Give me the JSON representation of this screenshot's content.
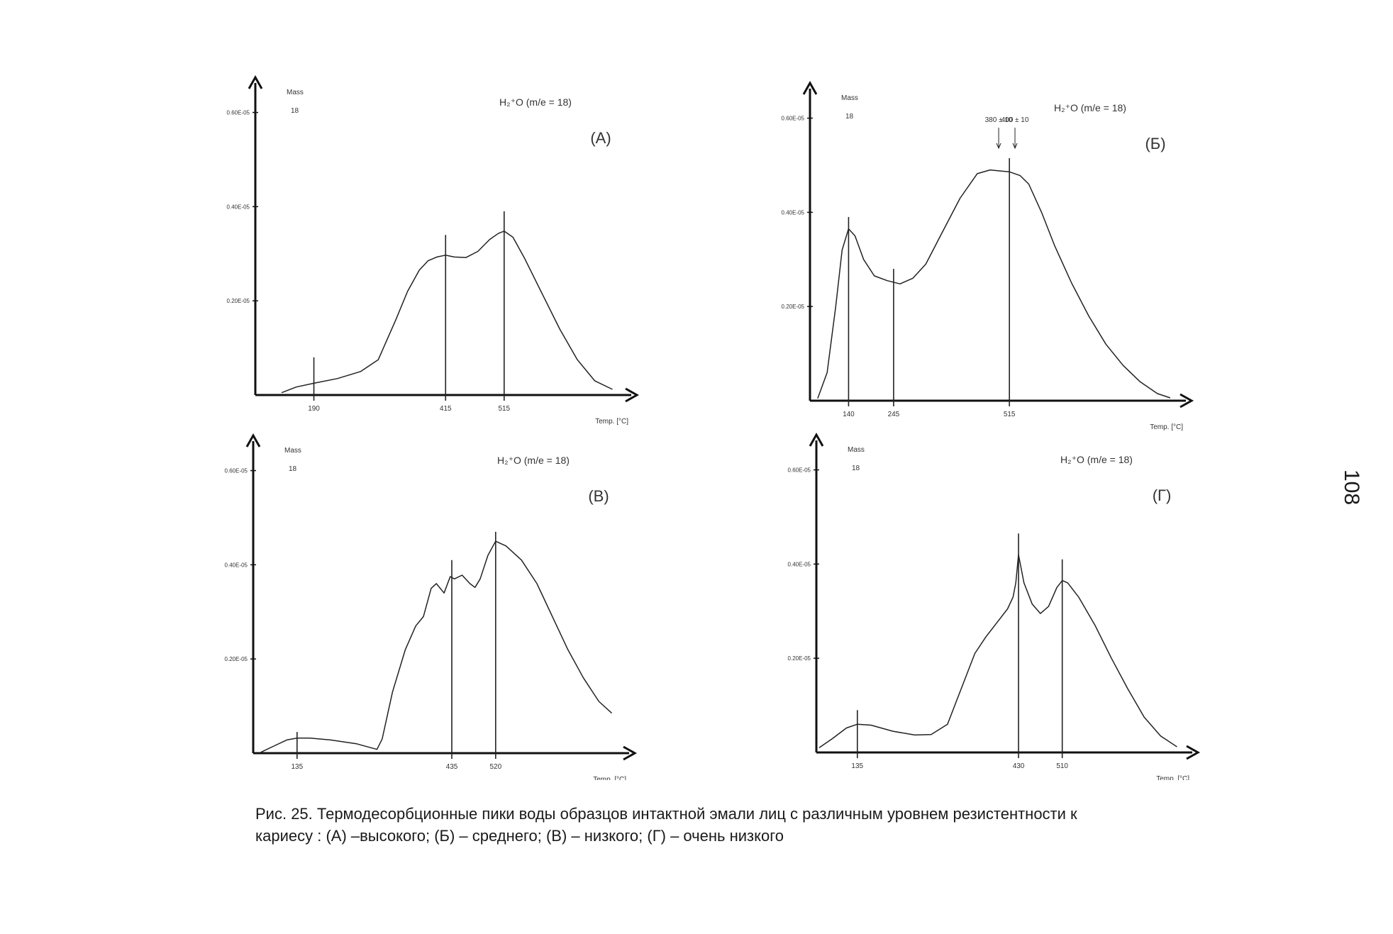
{
  "page_number": "108",
  "caption": {
    "line1": "Рис. 25. Термодесорбционные пики воды образцов интактной эмали лиц с различным уровнем резистентности к",
    "line2": "кариесу : (А) –высокого; (Б) – среднего; (В) – низкого; (Г) – очень низкого"
  },
  "chart_data": [
    {
      "type": "line",
      "panel_label": "(А)",
      "legend": "H₂⁺O (m/e = 18)",
      "mass_label": "Mass",
      "mass_value": "18",
      "xlabel": "Temp. [°C]",
      "ylabel": "",
      "ytick_labels": [
        "0.20E-05",
        "0.40E-05",
        "0.60E-05"
      ],
      "yticks": [
        0.2,
        0.4,
        0.6
      ],
      "xlim": [
        90,
        720
      ],
      "ylim": [
        0,
        0.64
      ],
      "peaks": [
        {
          "label": "190",
          "x": 190,
          "top": 0.08
        },
        {
          "label": "415",
          "x": 415,
          "top": 0.34
        },
        {
          "label": "515",
          "x": 515,
          "top": 0.39
        }
      ],
      "annotations": [],
      "series": [
        {
          "x": [
            135,
            160,
            190,
            230,
            270,
            300,
            330,
            350,
            370,
            385,
            400,
            415,
            430,
            450,
            470,
            490,
            505,
            515,
            530,
            550,
            580,
            610,
            640,
            670,
            700
          ],
          "y": [
            0.005,
            0.017,
            0.025,
            0.035,
            0.05,
            0.075,
            0.16,
            0.22,
            0.265,
            0.285,
            0.293,
            0.297,
            0.293,
            0.292,
            0.305,
            0.33,
            0.343,
            0.348,
            0.335,
            0.29,
            0.215,
            0.14,
            0.075,
            0.03,
            0.012
          ]
        }
      ]
    },
    {
      "type": "line",
      "panel_label": "(Б)",
      "legend": "H₂⁺O (m/e = 18)",
      "mass_label": "Mass",
      "mass_value": "18",
      "xlabel": "Temp. [°C]",
      "ylabel": "",
      "ytick_labels": [
        "0.20E-05",
        "0.40E-05",
        "0.60E-05"
      ],
      "yticks": [
        0.2,
        0.4,
        0.6
      ],
      "xlim": [
        50,
        910
      ],
      "ylim": [
        0,
        0.64
      ],
      "peaks": [
        {
          "label": "140",
          "x": 140,
          "top": 0.39
        },
        {
          "label": "245",
          "x": 245,
          "top": 0.28
        },
        {
          "label": "515",
          "x": 515,
          "top": 0.515
        }
      ],
      "annotations": [
        {
          "text": "380 ± 10",
          "x": 490
        },
        {
          "text": "400 ± 10",
          "x": 528
        }
      ],
      "series": [
        {
          "x": [
            68,
            90,
            110,
            125,
            140,
            155,
            175,
            200,
            230,
            260,
            290,
            320,
            360,
            400,
            440,
            470,
            490,
            515,
            540,
            560,
            590,
            620,
            660,
            700,
            740,
            780,
            820,
            860,
            890
          ],
          "y": [
            0.005,
            0.06,
            0.2,
            0.32,
            0.365,
            0.35,
            0.3,
            0.265,
            0.255,
            0.248,
            0.26,
            0.29,
            0.36,
            0.43,
            0.482,
            0.49,
            0.488,
            0.486,
            0.478,
            0.46,
            0.4,
            0.33,
            0.25,
            0.18,
            0.12,
            0.075,
            0.04,
            0.015,
            0.006
          ]
        }
      ]
    },
    {
      "type": "line",
      "panel_label": "(В)",
      "legend": "H₂⁺O (m/e = 18)",
      "mass_label": "Mass",
      "mass_value": "18",
      "xlabel": "Temp. [°C]",
      "ylabel": "",
      "ytick_labels": [
        "0.20E-05",
        "0.40E-05",
        "0.60E-05"
      ],
      "yticks": [
        0.2,
        0.4,
        0.6
      ],
      "xlim": [
        50,
        765
      ],
      "ylim": [
        0,
        0.64
      ],
      "peaks": [
        {
          "label": "135",
          "x": 135,
          "top": 0.045
        },
        {
          "label": "435",
          "x": 435,
          "top": 0.41
        },
        {
          "label": "520",
          "x": 520,
          "top": 0.47
        }
      ],
      "annotations": [],
      "series": [
        {
          "x": [
            65,
            90,
            115,
            135,
            160,
            200,
            250,
            290,
            300,
            320,
            345,
            365,
            380,
            395,
            405,
            420,
            432,
            440,
            455,
            470,
            480,
            490,
            505,
            520,
            540,
            570,
            600,
            630,
            660,
            690,
            720,
            745
          ],
          "y": [
            0.002,
            0.015,
            0.028,
            0.032,
            0.032,
            0.028,
            0.02,
            0.008,
            0.03,
            0.13,
            0.22,
            0.27,
            0.29,
            0.35,
            0.36,
            0.34,
            0.375,
            0.37,
            0.378,
            0.36,
            0.352,
            0.37,
            0.42,
            0.45,
            0.44,
            0.41,
            0.36,
            0.29,
            0.22,
            0.16,
            0.11,
            0.085
          ]
        }
      ]
    },
    {
      "type": "line",
      "panel_label": "(Г)",
      "legend": "H₂⁺O (m/e = 18)",
      "mass_label": "Mass",
      "mass_value": "18",
      "xlabel": "Temp. [°C]",
      "ylabel": "",
      "ytick_labels": [
        "0.20E-05",
        "0.40E-05",
        "0.60E-05"
      ],
      "yticks": [
        0.2,
        0.4,
        0.6
      ],
      "xlim": [
        60,
        735
      ],
      "ylim": [
        0,
        0.64
      ],
      "peaks": [
        {
          "label": "135",
          "x": 135,
          "top": 0.09
        },
        {
          "label": "430",
          "x": 430,
          "top": 0.465
        },
        {
          "label": "510",
          "x": 510,
          "top": 0.41
        }
      ],
      "annotations": [],
      "series": [
        {
          "x": [
            65,
            90,
            115,
            135,
            160,
            200,
            240,
            270,
            300,
            330,
            350,
            370,
            390,
            410,
            420,
            425,
            430,
            440,
            455,
            470,
            485,
            500,
            510,
            520,
            540,
            570,
            600,
            630,
            660,
            690,
            720
          ],
          "y": [
            0.01,
            0.03,
            0.052,
            0.06,
            0.058,
            0.045,
            0.037,
            0.038,
            0.06,
            0.15,
            0.21,
            0.245,
            0.275,
            0.305,
            0.33,
            0.36,
            0.42,
            0.36,
            0.315,
            0.295,
            0.31,
            0.35,
            0.365,
            0.36,
            0.33,
            0.27,
            0.2,
            0.135,
            0.075,
            0.035,
            0.012
          ]
        }
      ]
    }
  ]
}
